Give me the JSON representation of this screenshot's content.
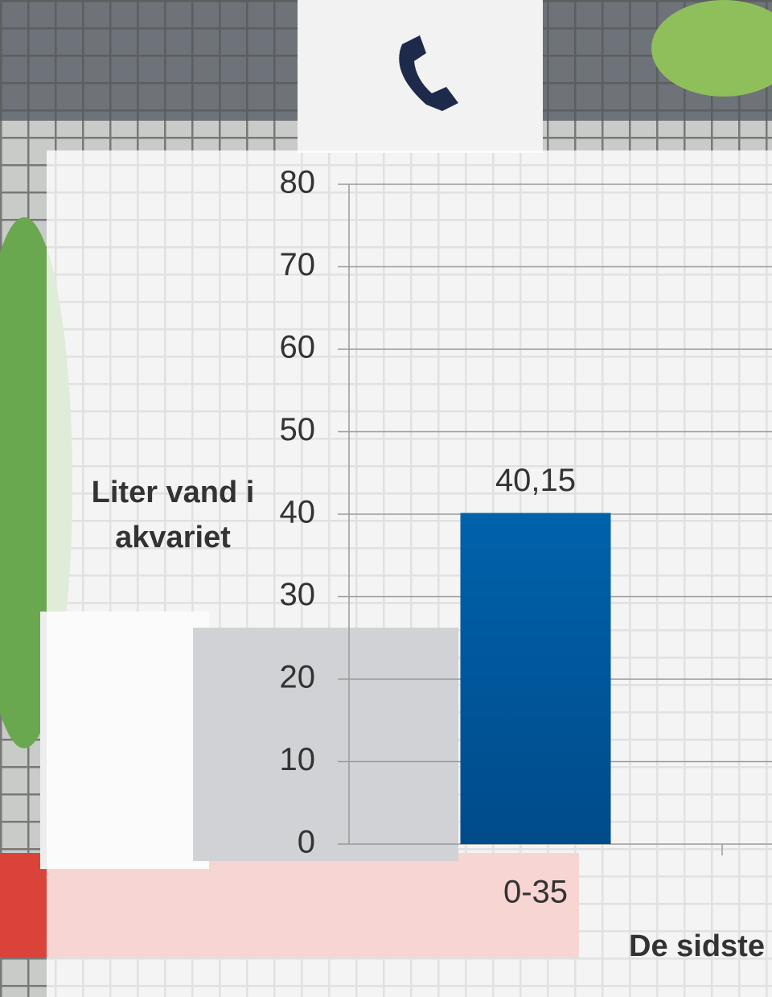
{
  "chart_data": {
    "type": "bar",
    "categories": [
      "0-35"
    ],
    "values": [
      40.15
    ],
    "value_labels": [
      "40,15"
    ],
    "color": "#005da4",
    "ylabel": "Liter vand i akvariet",
    "xlabel": "De sidste",
    "ylim": [
      0,
      80
    ],
    "yticks": [
      0,
      10,
      20,
      30,
      40,
      50,
      60,
      70,
      80
    ],
    "grid": true
  }
}
